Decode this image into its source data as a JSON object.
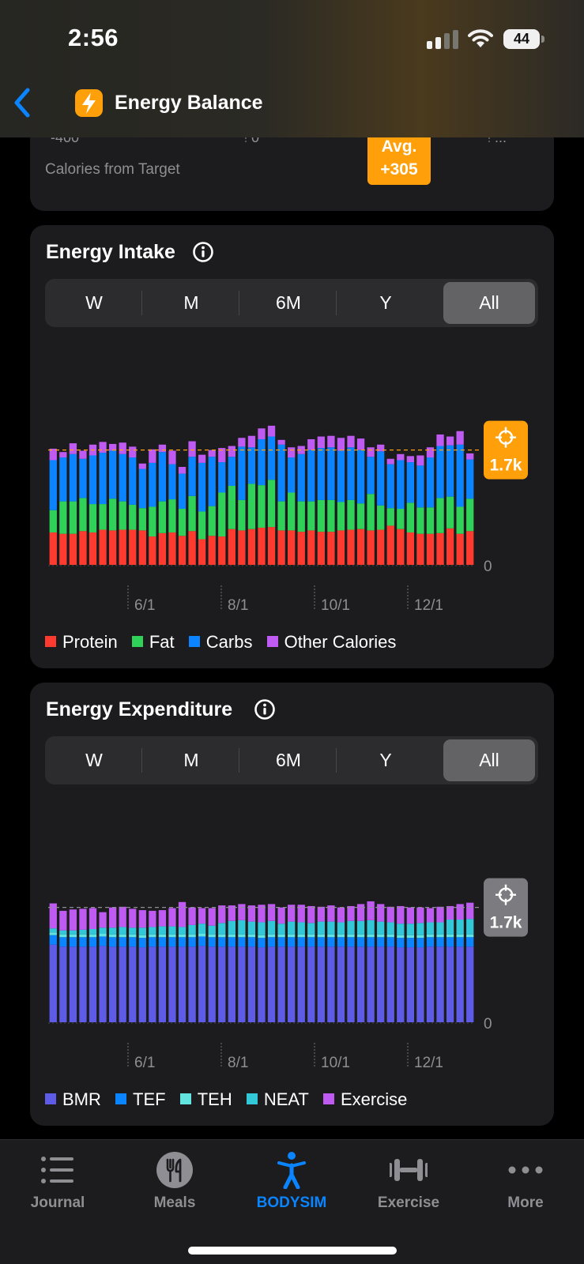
{
  "status_bar": {
    "time": "2:56",
    "battery": "44"
  },
  "header": {
    "title": "Energy Balance"
  },
  "previous_card": {
    "ticks": [
      "-400",
      "0",
      "..."
    ],
    "label": "Calories from Target",
    "avg_label": "Avg.",
    "avg_value": "+305"
  },
  "timeframes": [
    "W",
    "M",
    "6M",
    "Y",
    "All"
  ],
  "selected_timeframe": "All",
  "intake": {
    "title": "Energy Intake",
    "target_value": "1.7k",
    "zero_label": "0",
    "legend": [
      {
        "label": "Protein",
        "color": "#ff3b30"
      },
      {
        "label": "Fat",
        "color": "#30d158"
      },
      {
        "label": "Carbs",
        "color": "#0a84ff"
      },
      {
        "label": "Other Calories",
        "color": "#bf5af2"
      }
    ]
  },
  "expenditure": {
    "title": "Energy Expenditure",
    "target_value": "1.7k",
    "zero_label": "0",
    "legend": [
      {
        "label": "BMR",
        "color": "#5e5ce6"
      },
      {
        "label": "TEF",
        "color": "#0a84ff"
      },
      {
        "label": "TEH",
        "color": "#64e4e0"
      },
      {
        "label": "NEAT",
        "color": "#32c8d8"
      },
      {
        "label": "Exercise",
        "color": "#bf5af2"
      }
    ]
  },
  "tabbar": {
    "items": [
      {
        "label": "Journal",
        "icon": "list-icon"
      },
      {
        "label": "Meals",
        "icon": "fork-knife-icon"
      },
      {
        "label": "BODYSIM",
        "icon": "figure-icon"
      },
      {
        "label": "Exercise",
        "icon": "dumbbell-icon"
      },
      {
        "label": "More",
        "icon": "ellipsis-icon"
      }
    ],
    "active": "BODYSIM"
  },
  "chart_data": [
    {
      "type": "bar",
      "title": "Energy Intake",
      "stacked": true,
      "x_ticks": [
        "6/1",
        "8/1",
        "10/1",
        "12/1"
      ],
      "y_ticks": [
        "0"
      ],
      "target_line": 1700,
      "series": [
        {
          "name": "Protein",
          "color": "#ff3b30",
          "values": [
            480,
            460,
            460,
            500,
            480,
            520,
            510,
            520,
            520,
            510,
            420,
            470,
            480,
            430,
            500,
            380,
            430,
            420,
            530,
            510,
            530,
            550,
            560,
            510,
            510,
            490,
            510,
            490,
            490,
            510,
            520,
            530,
            510,
            520,
            580,
            530,
            480,
            460,
            460,
            470,
            540,
            460,
            500
          ]
        },
        {
          "name": "Fat",
          "color": "#30d158",
          "values": [
            330,
            480,
            480,
            490,
            420,
            380,
            470,
            420,
            370,
            330,
            440,
            470,
            490,
            400,
            520,
            410,
            440,
            650,
            640,
            450,
            670,
            630,
            700,
            430,
            560,
            450,
            430,
            470,
            470,
            420,
            440,
            380,
            540,
            360,
            260,
            300,
            440,
            390,
            390,
            520,
            470,
            400,
            480
          ]
        },
        {
          "name": "Carbs",
          "color": "#0a84ff",
          "values": [
            740,
            650,
            700,
            580,
            720,
            760,
            710,
            700,
            700,
            580,
            650,
            730,
            520,
            520,
            580,
            720,
            730,
            450,
            430,
            790,
            540,
            680,
            640,
            840,
            520,
            700,
            760,
            770,
            780,
            760,
            780,
            790,
            550,
            800,
            650,
            720,
            600,
            620,
            740,
            770,
            760,
            920,
            580
          ]
        },
        {
          "name": "Other Calories",
          "color": "#bf5af2",
          "values": [
            170,
            80,
            160,
            120,
            160,
            160,
            100,
            170,
            160,
            80,
            200,
            110,
            200,
            100,
            230,
            120,
            100,
            210,
            160,
            130,
            170,
            160,
            160,
            70,
            150,
            120,
            160,
            170,
            170,
            190,
            170,
            170,
            140,
            100,
            80,
            90,
            90,
            150,
            150,
            170,
            130,
            200,
            90
          ]
        }
      ]
    },
    {
      "type": "bar",
      "title": "Energy Expenditure",
      "stacked": true,
      "x_ticks": [
        "6/1",
        "8/1",
        "10/1",
        "12/1"
      ],
      "y_ticks": [
        "0"
      ],
      "target_line": 1700,
      "series": [
        {
          "name": "BMR",
          "color": "#5e5ce6",
          "values": [
            1150,
            1120,
            1120,
            1120,
            1120,
            1130,
            1120,
            1120,
            1120,
            1110,
            1120,
            1120,
            1120,
            1120,
            1120,
            1130,
            1120,
            1120,
            1120,
            1120,
            1120,
            1110,
            1120,
            1120,
            1120,
            1120,
            1120,
            1120,
            1120,
            1120,
            1120,
            1120,
            1120,
            1120,
            1120,
            1110,
            1110,
            1110,
            1120,
            1120,
            1120,
            1120,
            1120
          ]
        },
        {
          "name": "TEF",
          "color": "#0a84ff",
          "values": [
            140,
            140,
            140,
            140,
            140,
            140,
            140,
            140,
            140,
            140,
            140,
            140,
            140,
            140,
            140,
            140,
            140,
            140,
            140,
            140,
            140,
            140,
            140,
            140,
            140,
            140,
            140,
            140,
            140,
            140,
            140,
            140,
            140,
            140,
            140,
            140,
            140,
            140,
            140,
            140,
            140,
            140,
            140
          ]
        },
        {
          "name": "TEH",
          "color": "#64e4e0",
          "values": [
            40,
            40,
            40,
            40,
            40,
            40,
            40,
            40,
            40,
            40,
            40,
            40,
            40,
            40,
            40,
            40,
            40,
            40,
            40,
            40,
            40,
            40,
            40,
            40,
            40,
            40,
            40,
            40,
            40,
            40,
            40,
            40,
            40,
            40,
            40,
            40,
            40,
            40,
            40,
            40,
            40,
            40,
            40
          ]
        },
        {
          "name": "NEAT",
          "color": "#32c8d8",
          "values": [
            60,
            60,
            60,
            70,
            80,
            90,
            100,
            110,
            100,
            110,
            110,
            120,
            120,
            110,
            140,
            150,
            130,
            170,
            200,
            210,
            190,
            190,
            200,
            160,
            190,
            180,
            170,
            190,
            190,
            180,
            200,
            200,
            210,
            190,
            180,
            170,
            170,
            180,
            180,
            180,
            220,
            220,
            230
          ]
        },
        {
          "name": "Exercise",
          "color": "#bf5af2",
          "values": [
            370,
            290,
            310,
            310,
            310,
            230,
            300,
            300,
            280,
            260,
            240,
            240,
            270,
            370,
            260,
            230,
            260,
            260,
            230,
            240,
            240,
            260,
            250,
            240,
            250,
            260,
            250,
            220,
            240,
            220,
            220,
            250,
            280,
            260,
            230,
            260,
            240,
            230,
            210,
            230,
            200,
            230,
            240
          ]
        }
      ]
    }
  ]
}
